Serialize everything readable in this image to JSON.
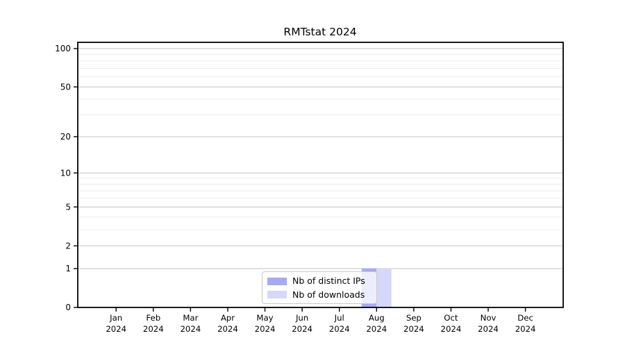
{
  "chart_data": {
    "type": "bar",
    "title": "RMTstat 2024",
    "categories": [
      "Jan",
      "Feb",
      "Mar",
      "Apr",
      "May",
      "Jun",
      "Jul",
      "Aug",
      "Sep",
      "Oct",
      "Nov",
      "Dec"
    ],
    "category_year": "2024",
    "series": [
      {
        "name": "Nb of distinct IPs",
        "color": "#a7aaef",
        "values": [
          0,
          0,
          0,
          0,
          0,
          0,
          0,
          1,
          0,
          0,
          0,
          0
        ]
      },
      {
        "name": "Nb of downloads",
        "color": "#d6d8f9",
        "values": [
          0,
          0,
          0,
          0,
          0,
          0,
          0,
          1,
          0,
          0,
          0,
          0
        ]
      }
    ],
    "xlabel": "",
    "ylabel": "",
    "y_scale": "log10(1+value)",
    "y_ticks": [
      0,
      1,
      2,
      5,
      10,
      20,
      50,
      100
    ],
    "y_minor_gridlines": [
      3,
      4,
      6,
      7,
      8,
      9,
      30,
      40,
      60,
      70,
      80,
      90
    ],
    "ylim": [
      0,
      112
    ],
    "grid": "horizontal",
    "legend_position": "bottom-center",
    "colors": {
      "bar_distinct_ips": "#a7aaef",
      "bar_downloads": "#d6d8f9",
      "grid_major": "#c3c3c3",
      "grid_minor": "#ececec",
      "axis": "#000000",
      "text": "#000000",
      "legend_border": "#c9c9c9",
      "background": "#ffffff"
    }
  }
}
